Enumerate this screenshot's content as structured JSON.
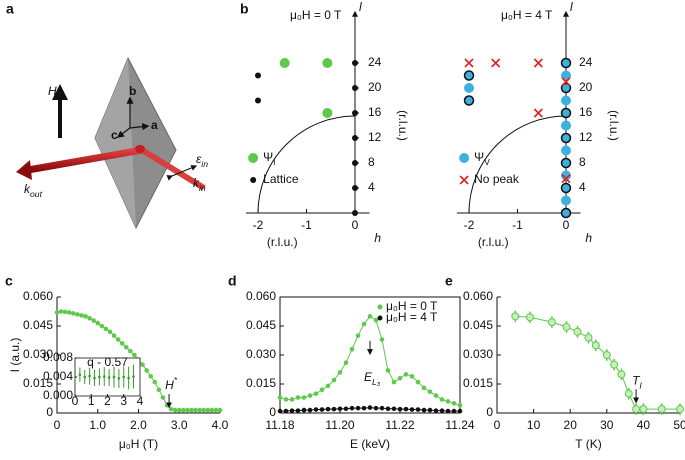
{
  "diagram": {
    "panel": "a",
    "field": {
      "main": "H",
      "sub": "b"
    },
    "axes": [
      "b",
      "c",
      "a"
    ],
    "k_out": {
      "main": "k",
      "sub": "out"
    },
    "k_in": {
      "main": "k",
      "sub": "in"
    },
    "polarization": {
      "main": "ε",
      "sub": "in"
    }
  },
  "maps": {
    "panel": "b",
    "h_label": "h",
    "l_label": "l",
    "unit": "(r.l.u.)",
    "hticks": [
      -2,
      -1,
      0
    ],
    "lticks": [
      4,
      8,
      12,
      16,
      20,
      24
    ],
    "panels": [
      {
        "title": "μ₀H = 0 T",
        "series": [
          {
            "name": {
              "main": "Ψ",
              "sub": "I"
            },
            "color": "#5ec94a",
            "marker": "dot",
            "h": [
              -1.45,
              -0.57,
              -0.57
            ],
            "l": [
              24,
              24,
              16
            ]
          },
          {
            "name": "Lattice",
            "color": "#111111",
            "marker": "dot",
            "h": [
              0,
              0,
              0,
              0,
              0,
              0,
              0,
              -2,
              -2
            ],
            "l": [
              0,
              4,
              8,
              12,
              16,
              20,
              24,
              22,
              18
            ]
          }
        ]
      },
      {
        "title": "μ₀H = 4 T",
        "series": [
          {
            "name": {
              "main": "Ψ",
              "sub": "V"
            },
            "color": "#3db0e0",
            "marker": "dot",
            "h": [
              0,
              0,
              0,
              0,
              0,
              0,
              0,
              0,
              0,
              0,
              0,
              0,
              0,
              -2,
              -2,
              -2
            ],
            "l": [
              0,
              2,
              4,
              6,
              8,
              10,
              12,
              14,
              16,
              18,
              20,
              22,
              24,
              22,
              20,
              18
            ]
          },
          {
            "color": "#111111",
            "marker": "ring",
            "h": [
              0,
              0,
              0,
              0,
              0,
              0,
              0,
              -2,
              -2
            ],
            "l": [
              0,
              4,
              8,
              12,
              16,
              20,
              24,
              22,
              18
            ]
          },
          {
            "name": "No peak",
            "color": "#e02020",
            "marker": "cross",
            "h": [
              -2,
              -1.45,
              -0.57,
              -0.57,
              0,
              0
            ],
            "l": [
              24,
              24,
              24,
              16,
              21,
              5.5
            ]
          }
        ]
      }
    ]
  },
  "chart_data": [
    {
      "type": "line",
      "panel": "c",
      "xlabel": "μ₀H (T)",
      "ylabel": "I (a.u.)",
      "annotation": {
        "main": "H",
        "sup": "*"
      },
      "x": [
        0,
        0.1,
        0.2,
        0.3,
        0.4,
        0.5,
        0.6,
        0.7,
        0.8,
        0.9,
        1.0,
        1.1,
        1.2,
        1.3,
        1.4,
        1.5,
        1.6,
        1.7,
        1.8,
        1.9,
        2.0,
        2.1,
        2.2,
        2.3,
        2.4,
        2.5,
        2.6,
        2.7,
        2.8,
        2.9,
        3.0,
        3.1,
        3.2,
        3.3,
        3.4,
        3.5,
        3.6,
        3.7,
        3.8,
        3.9,
        4.0
      ],
      "series": [
        {
          "color": "#5ec94a",
          "values": [
            0.052,
            0.0525,
            0.0523,
            0.052,
            0.0515,
            0.051,
            0.0505,
            0.05,
            0.049,
            0.0478,
            0.0465,
            0.045,
            0.0435,
            0.042,
            0.04,
            0.038,
            0.036,
            0.034,
            0.032,
            0.03,
            0.0275,
            0.025,
            0.022,
            0.019,
            0.016,
            0.012,
            0.008,
            0.004,
            0.002,
            0.0015,
            0.0015,
            0.0015,
            0.0015,
            0.0015,
            0.0015,
            0.0015,
            0.0015,
            0.0015,
            0.0015,
            0.0015,
            0.0015
          ]
        }
      ],
      "xlim": [
        0,
        4
      ],
      "ylim": [
        0,
        0.06
      ],
      "xticks": [
        0,
        {
          "value": 1,
          "label": "1.0"
        },
        {
          "value": 2,
          "label": "2.0"
        },
        {
          "value": 3,
          "label": "3.0"
        },
        {
          "value": 4,
          "label": "4.0"
        }
      ],
      "yticks": [
        0,
        0.015,
        {
          "value": 0.03,
          "label": "0.030"
        },
        0.045,
        {
          "value": 0.06,
          "label": "0.060"
        }
      ],
      "inset": {
        "text": "q - 0.57",
        "x": [
          0.3,
          0.6,
          0.9,
          1.2,
          1.5,
          1.8,
          2.1,
          2.4,
          2.7,
          3.0,
          3.3,
          3.6
        ],
        "values": [
          0.0045,
          0.004,
          0.0042,
          0.0038,
          0.004,
          0.0041,
          0.0039,
          0.004,
          0.0037,
          0.004,
          0.0038,
          0.0041
        ],
        "errors": [
          0.0015,
          0.0015,
          0.0018,
          0.0017,
          0.0018,
          0.002,
          0.0018,
          0.0022,
          0.002,
          0.0022,
          0.0024,
          0.0025
        ],
        "color": "#3a9a2e",
        "xlim": [
          0,
          4
        ],
        "ylim": [
          0,
          0.008
        ],
        "xticks": [
          0,
          1,
          2,
          3,
          4
        ],
        "yticks": [
          {
            "value": 0,
            "label": "0.000"
          },
          0.004,
          {
            "value": 0.008,
            "label": "0.008"
          }
        ]
      }
    },
    {
      "type": "line",
      "panel": "d",
      "xlabel": "E (keV)",
      "box": true,
      "annotation": {
        "main": "E",
        "sub": "L₃"
      },
      "x": [
        11.18,
        11.182,
        11.184,
        11.186,
        11.188,
        11.19,
        11.192,
        11.194,
        11.196,
        11.198,
        11.2,
        11.202,
        11.204,
        11.206,
        11.208,
        11.21,
        11.212,
        11.214,
        11.216,
        11.218,
        11.22,
        11.222,
        11.224,
        11.226,
        11.228,
        11.23,
        11.232,
        11.234,
        11.236,
        11.238,
        11.24
      ],
      "series": [
        {
          "name": "μ₀H = 0 T",
          "color": "#5ec94a",
          "values": [
            0.008,
            0.007,
            0.007,
            0.008,
            0.008,
            0.009,
            0.01,
            0.012,
            0.014,
            0.017,
            0.021,
            0.026,
            0.033,
            0.04,
            0.046,
            0.05,
            0.048,
            0.038,
            0.022,
            0.016,
            0.018,
            0.02,
            0.019,
            0.016,
            0.013,
            0.011,
            0.009,
            0.007,
            0.006,
            0.005,
            0.004
          ]
        },
        {
          "name": "μ₀H = 4 T",
          "color": "#111111",
          "values": [
            0.001,
            0.001,
            0.0012,
            0.0012,
            0.0015,
            0.0015,
            0.0018,
            0.0018,
            0.002,
            0.002,
            0.0022,
            0.0022,
            0.0025,
            0.0025,
            0.0025,
            0.0028,
            0.0025,
            0.0025,
            0.0022,
            0.0022,
            0.002,
            0.002,
            0.0018,
            0.0018,
            0.0015,
            0.0015,
            0.0012,
            0.0012,
            0.001,
            0.001,
            0.001
          ]
        }
      ],
      "xlim": [
        11.18,
        11.24
      ],
      "ylim": [
        0,
        0.06
      ],
      "xticks": [
        11.18,
        {
          "value": 11.2,
          "label": "11.20"
        },
        11.22,
        11.24
      ],
      "yticks": [
        0,
        0.015,
        {
          "value": 0.03,
          "label": "0.030"
        },
        0.045,
        {
          "value": 0.06,
          "label": "0.060"
        }
      ]
    },
    {
      "type": "line",
      "panel": "e",
      "xlabel": "T (K)",
      "annotation": {
        "main": "T",
        "sub": "I"
      },
      "marker": "open",
      "x": [
        5,
        9,
        15,
        19,
        22,
        25,
        27,
        30,
        32,
        34,
        36,
        38,
        40,
        45,
        50
      ],
      "series": [
        {
          "color": "#5ec94a",
          "values": [
            0.05,
            0.0495,
            0.047,
            0.0445,
            0.042,
            0.039,
            0.035,
            0.03,
            0.025,
            0.02,
            0.01,
            0.002,
            0.002,
            0.002,
            0.002
          ],
          "errors": [
            0.003,
            0.003,
            0.003,
            0.003,
            0.003,
            0.003,
            0.003,
            0.003,
            0.003,
            0.003,
            0.003,
            0.003,
            0.003,
            0.003,
            0.003
          ]
        }
      ],
      "xlim": [
        0,
        50
      ],
      "ylim": [
        0,
        0.06
      ],
      "xticks": [
        0,
        10,
        20,
        30,
        40,
        50
      ],
      "yticks": [
        0,
        0.015,
        {
          "value": 0.03,
          "label": "0.030"
        },
        0.045,
        {
          "value": 0.06,
          "label": "0.060"
        }
      ]
    }
  ]
}
